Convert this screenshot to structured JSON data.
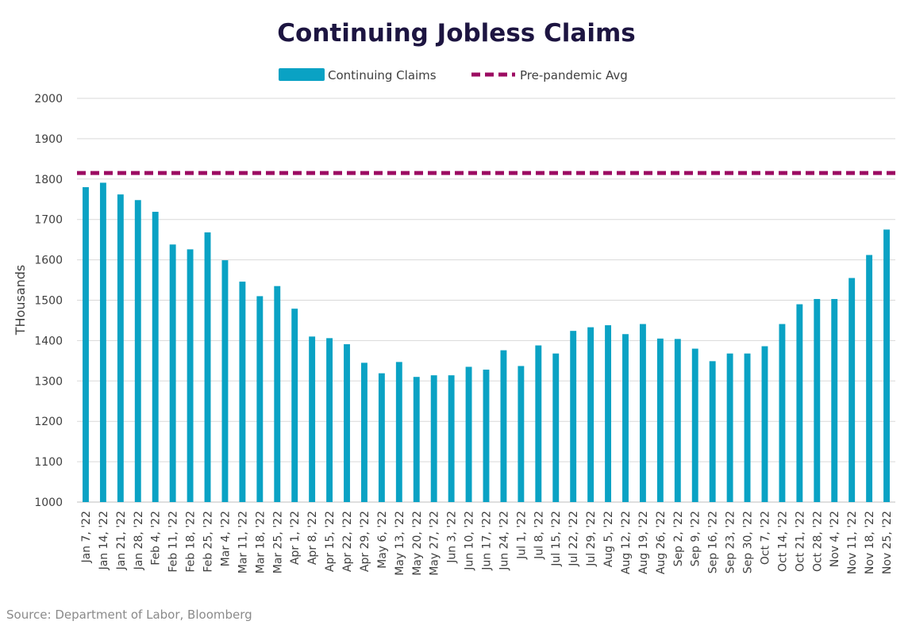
{
  "chart_data": {
    "type": "bar",
    "title": "Continuing Jobless Claims",
    "xlabel": "",
    "ylabel": "THousands",
    "ylim": [
      1000,
      2000
    ],
    "yticks": [
      1000,
      1100,
      1200,
      1300,
      1400,
      1500,
      1600,
      1700,
      1800,
      1900,
      2000
    ],
    "grid": true,
    "legend_position": "top-center",
    "categories": [
      "Jan 7, '22",
      "Jan 14, '22",
      "Jan 21, '22",
      "Jan 28, '22",
      "Feb 4, '22",
      "Feb 11, '22",
      "Feb 18, '22",
      "Feb 25, '22",
      "Mar 4, '22",
      "Mar 11, '22",
      "Mar 18, '22",
      "Mar 25, '22",
      "Apr 1, '22",
      "Apr 8, '22",
      "Apr 15, '22",
      "Apr 22, '22",
      "Apr 29, '22",
      "May 6, '22",
      "May 13, '22",
      "May 20, '22",
      "May 27, '22",
      "Jun 3, '22",
      "Jun 10, '22",
      "Jun 17, '22",
      "Jun 24, '22",
      "Jul 1, '22",
      "Jul 8, '22",
      "Jul 15, '22",
      "Jul 22, '22",
      "Jul 29, '22",
      "Aug 5, '22",
      "Aug 12, '22",
      "Aug 19, '22",
      "Aug 26, '22",
      "Sep 2, '22",
      "Sep 9, '22",
      "Sep 16, '22",
      "Sep 23, '22",
      "Sep 30, '22",
      "Oct 7, '22",
      "Oct 14, '22",
      "Oct 21, '22",
      "Oct 28, '22",
      "Nov 4, '22",
      "Nov 11, '22",
      "Nov 18, '22",
      "Nov 25, '22"
    ],
    "series": [
      {
        "name": "Continuing Claims",
        "color": "#0aa2c4",
        "values": [
          1780,
          1791,
          1762,
          1748,
          1719,
          1638,
          1626,
          1668,
          1599,
          1546,
          1510,
          1535,
          1479,
          1410,
          1406,
          1391,
          1345,
          1319,
          1347,
          1310,
          1314,
          1314,
          1335,
          1328,
          1376,
          1337,
          1388,
          1368,
          1424,
          1433,
          1438,
          1416,
          1441,
          1405,
          1404,
          1380,
          1349,
          1368,
          1368,
          1386,
          1441,
          1490,
          1503,
          1503,
          1555,
          1612,
          1675
        ]
      }
    ],
    "reference_line": {
      "name": "Pre-pandemic Avg",
      "value": 1815,
      "color": "#9c0b62"
    },
    "source": "Source: Department of Labor, Bloomberg"
  }
}
